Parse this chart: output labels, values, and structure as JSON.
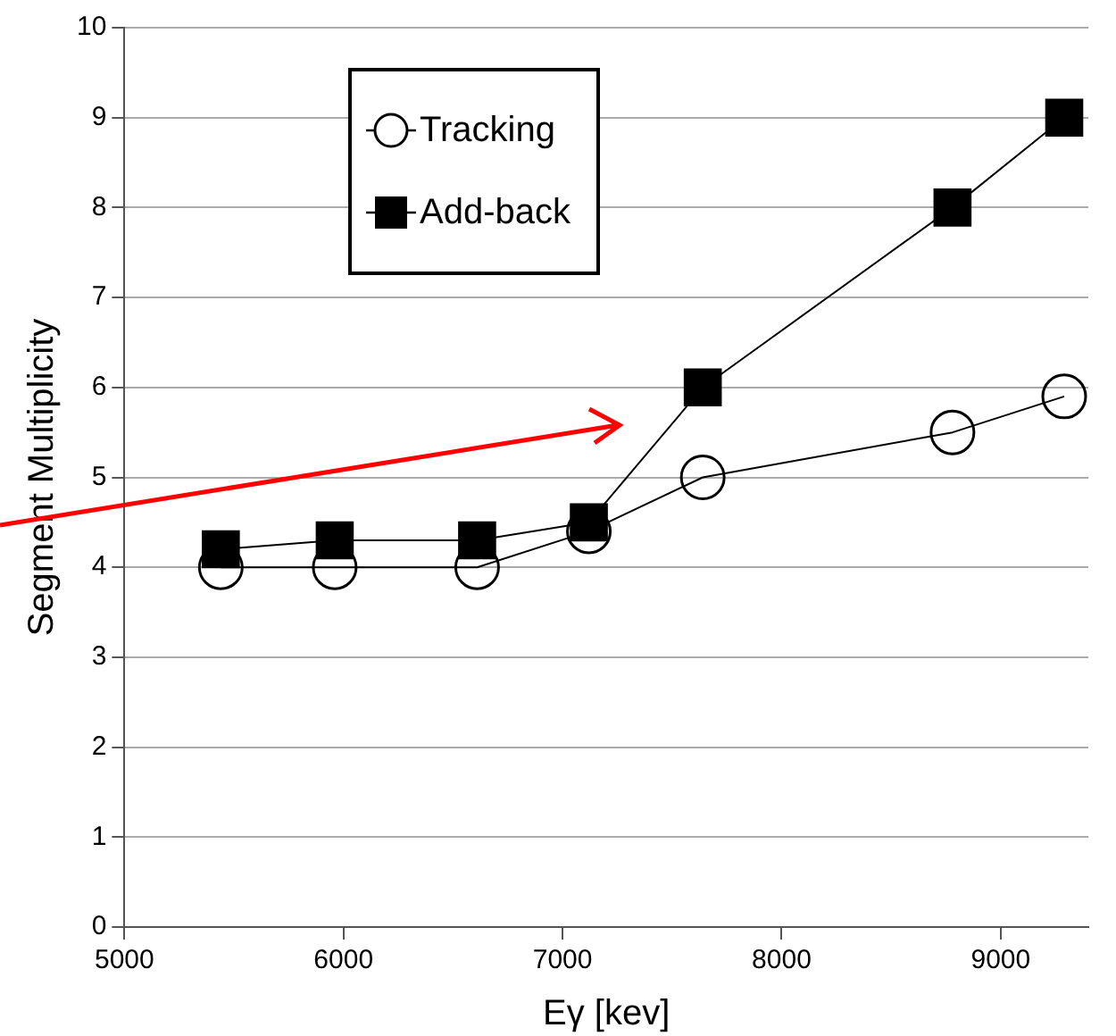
{
  "chart_data": {
    "type": "line",
    "xlabel": "Eγ [kev]",
    "ylabel": "Segment Multiplicity",
    "xlim": [
      5000,
      9400
    ],
    "xticks": [
      5000,
      6000,
      7000,
      8000,
      9000
    ],
    "ylim": [
      0,
      10
    ],
    "yticks": [
      0,
      1,
      2,
      3,
      4,
      5,
      6,
      7,
      8,
      9,
      10
    ],
    "grid": "y",
    "legend": "top",
    "line_style": "solid",
    "x": [
      5440,
      5960,
      6610,
      7120,
      7640,
      8780,
      9290
    ],
    "series": [
      {
        "name": "Tracking",
        "color": "#000000",
        "marker": "circle",
        "values": [
          4.0,
          4.0,
          4.0,
          4.4,
          5.0,
          5.5,
          5.9
        ]
      },
      {
        "name": "Add-back",
        "color": "#000000",
        "marker": "square",
        "values": [
          4.2,
          4.3,
          4.3,
          4.5,
          6.0,
          8.0,
          9.0
        ]
      }
    ]
  }
}
